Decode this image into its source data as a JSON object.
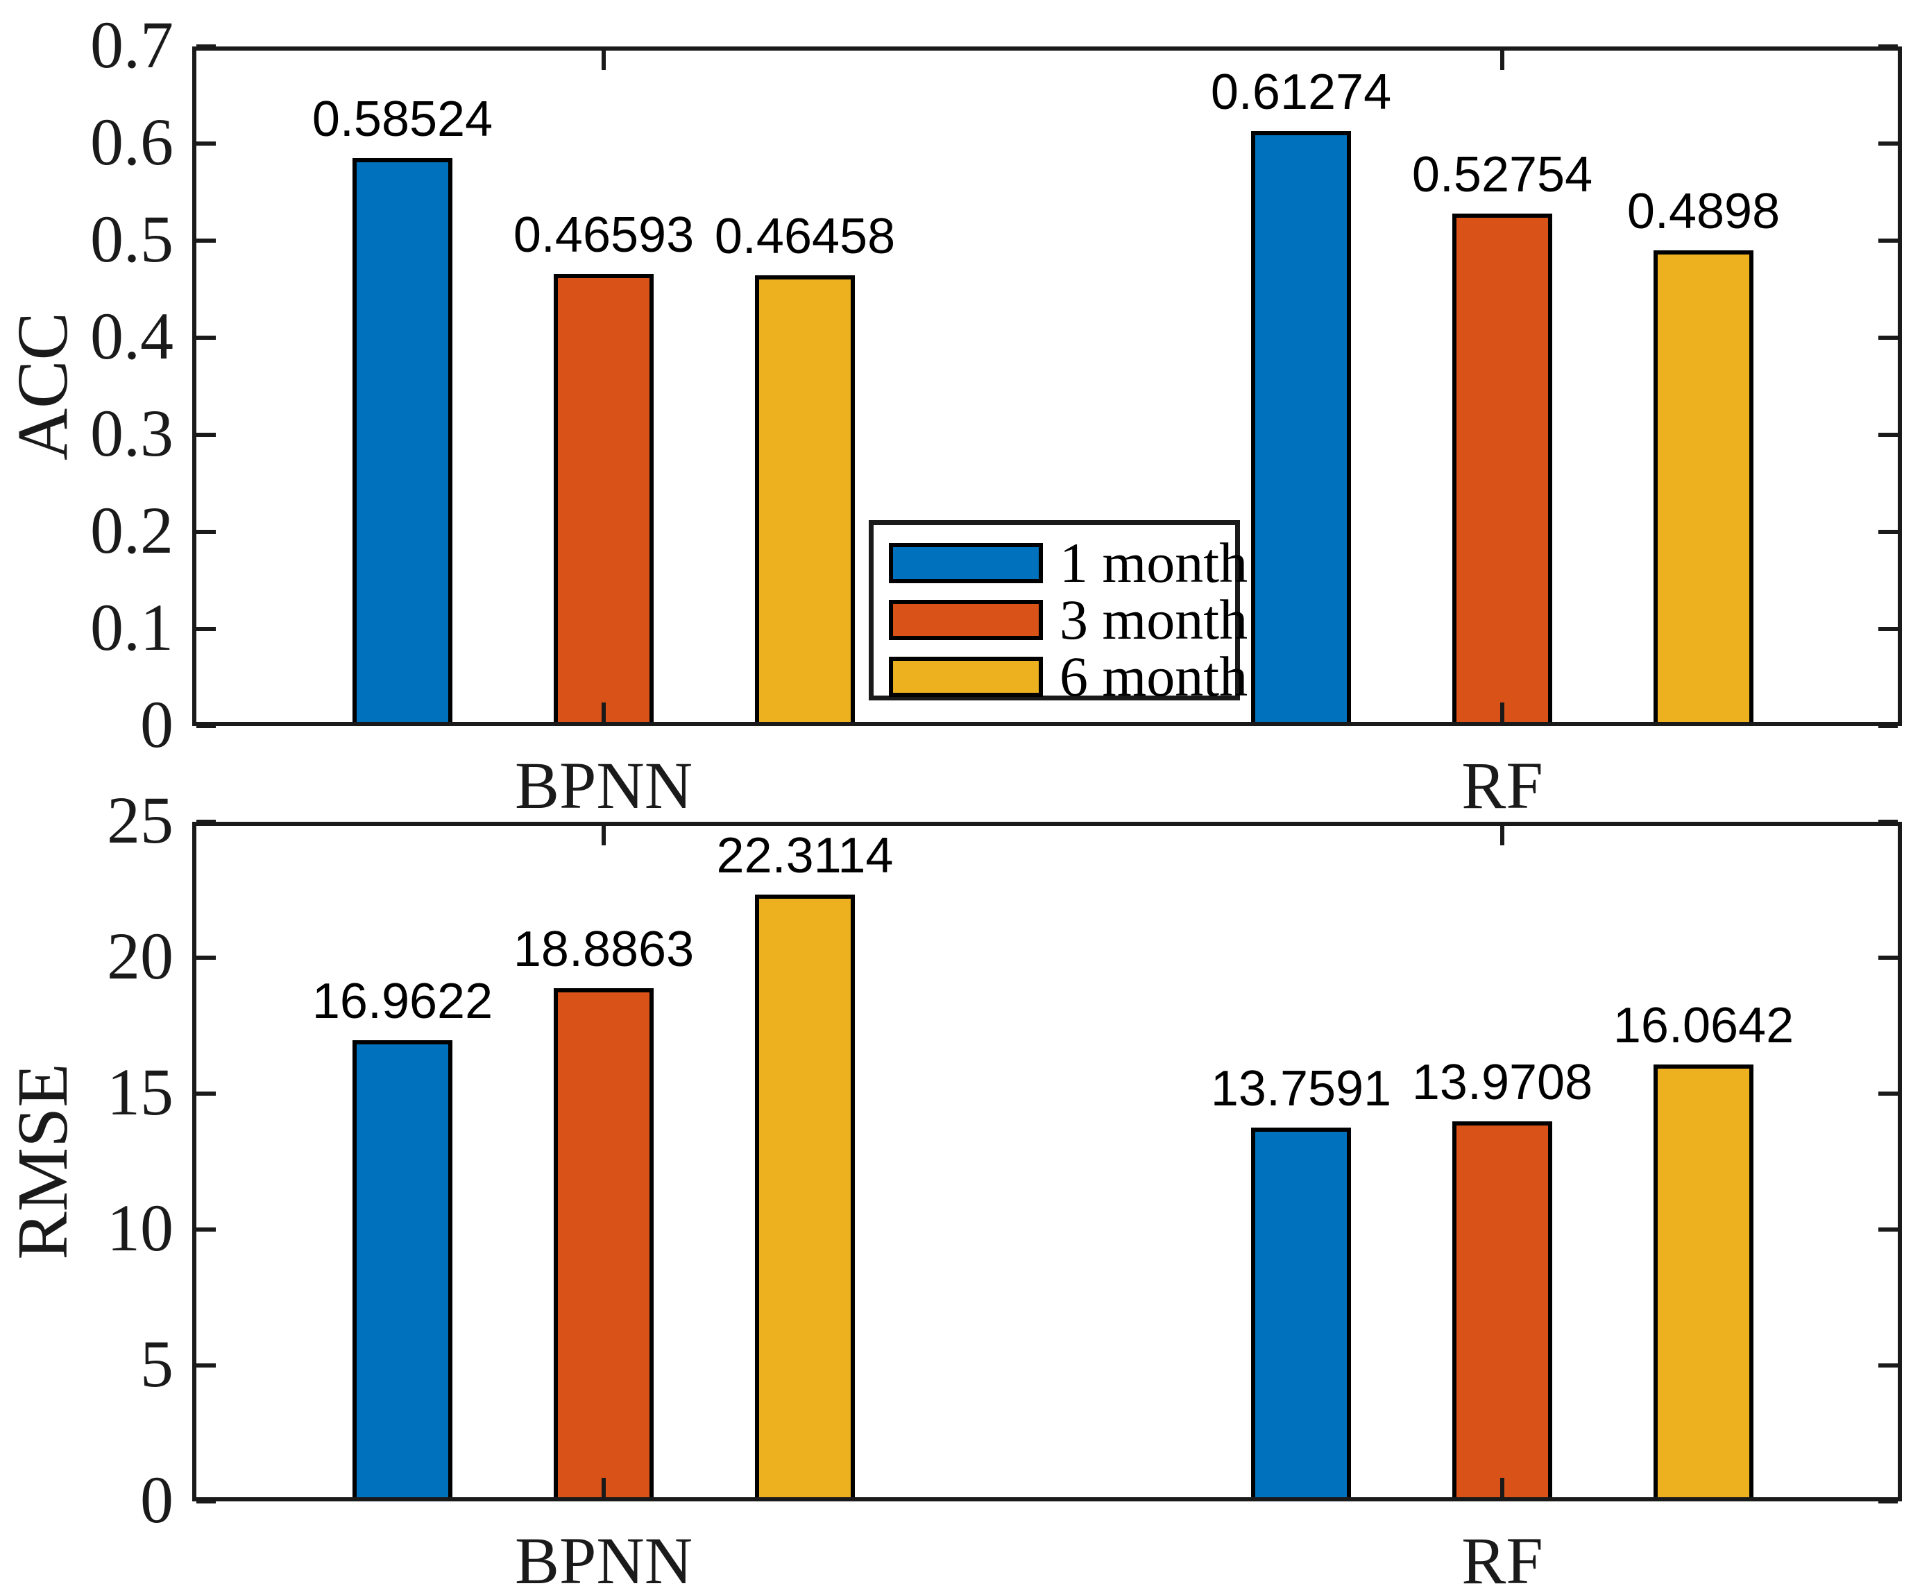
{
  "figure": {
    "background": "#ffffff",
    "axis_color": "#1a1a1a",
    "bar_edge_color": "#000000",
    "series_colors": [
      "#0072BD",
      "#D95319",
      "#EDB120"
    ]
  },
  "legend": {
    "items": [
      {
        "label": "1 month",
        "color": "#0072BD"
      },
      {
        "label": "3 month",
        "color": "#D95319"
      },
      {
        "label": "6 month",
        "color": "#EDB120"
      }
    ]
  },
  "chart_data": [
    {
      "type": "bar",
      "title": "",
      "ylabel": "ACC",
      "xlabel": "",
      "categories": [
        "BPNN",
        "RF"
      ],
      "series": [
        {
          "name": "1 month",
          "color": "#0072BD",
          "values": [
            0.58524,
            0.61274
          ],
          "labels": [
            "0.58524",
            "0.61274"
          ]
        },
        {
          "name": "3 month",
          "color": "#D95319",
          "values": [
            0.46593,
            0.52754
          ],
          "labels": [
            "0.46593",
            "0.52754"
          ]
        },
        {
          "name": "6 month",
          "color": "#EDB120",
          "values": [
            0.46458,
            0.4898
          ],
          "labels": [
            "0.46458",
            "0.4898"
          ]
        }
      ],
      "ylim": [
        0,
        0.7
      ],
      "yticks": [
        0,
        0.1,
        0.2,
        0.3,
        0.4,
        0.5,
        0.6,
        0.7
      ],
      "ytick_labels": [
        "0",
        "0.1",
        "0.2",
        "0.3",
        "0.4",
        "0.5",
        "0.6",
        "0.7"
      ],
      "grid": false,
      "box": true,
      "tick_direction": "in",
      "legend_position": "inside-bottom-center"
    },
    {
      "type": "bar",
      "title": "",
      "ylabel": "RMSE",
      "xlabel": "",
      "categories": [
        "BPNN",
        "RF"
      ],
      "series": [
        {
          "name": "1 month",
          "color": "#0072BD",
          "values": [
            16.9622,
            13.7591
          ],
          "labels": [
            "16.9622",
            "13.7591"
          ]
        },
        {
          "name": "3 month",
          "color": "#D95319",
          "values": [
            18.8863,
            13.9708
          ],
          "labels": [
            "18.8863",
            "13.9708"
          ]
        },
        {
          "name": "6 month",
          "color": "#EDB120",
          "values": [
            22.3114,
            16.0642
          ],
          "labels": [
            "22.3114",
            "16.0642"
          ]
        }
      ],
      "ylim": [
        0,
        25
      ],
      "yticks": [
        0,
        5,
        10,
        15,
        20,
        25
      ],
      "ytick_labels": [
        "0",
        "5",
        "10",
        "15",
        "20",
        "25"
      ],
      "grid": false,
      "box": true,
      "tick_direction": "in",
      "legend_position": "none"
    }
  ]
}
